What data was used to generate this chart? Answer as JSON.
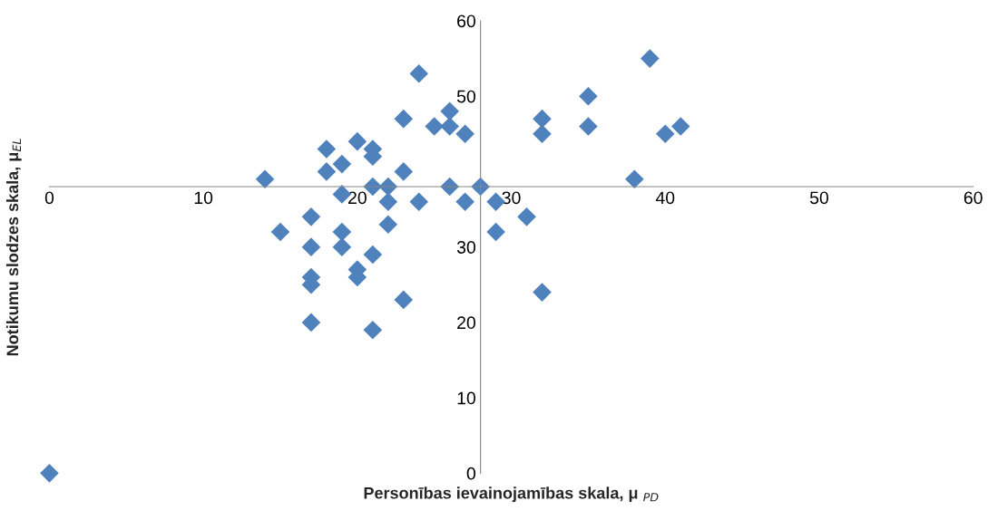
{
  "chart_data": {
    "type": "scatter",
    "xlabel": "Personības ievainojamības skala, μ $_{PD}$",
    "ylabel": "Notikumu slodzes skala, μ$_{EL}$",
    "x": [
      0,
      14,
      15,
      17,
      17,
      17,
      17,
      17,
      18,
      18,
      19,
      19,
      19,
      19,
      20,
      20,
      20,
      21,
      21,
      21,
      21,
      21,
      22,
      22,
      22,
      23,
      23,
      23,
      24,
      24,
      25,
      26,
      26,
      26,
      27,
      27,
      28,
      29,
      29,
      31,
      32,
      32,
      32,
      35,
      35,
      38,
      39,
      40,
      41
    ],
    "series": [
      {
        "color": "#4f81bd",
        "values": [
          0,
          39,
          32,
          34,
          30,
          26,
          25,
          20,
          43,
          40,
          41,
          37,
          32,
          30,
          44,
          27,
          26,
          43,
          42,
          38,
          29,
          19,
          38,
          36,
          33,
          47,
          40,
          23,
          53,
          36,
          46,
          48,
          46,
          38,
          45,
          36,
          38,
          36,
          32,
          34,
          47,
          45,
          24,
          50,
          46,
          39,
          55,
          45,
          46
        ]
      }
    ],
    "xlim": [
      0,
      60
    ],
    "xticks": [
      0,
      10,
      20,
      30,
      40,
      50,
      60
    ],
    "ylim": [
      0,
      60
    ],
    "yticks": [
      0,
      10,
      20,
      30,
      50,
      60
    ],
    "marker": "diamond",
    "grid": false,
    "legend": false
  }
}
